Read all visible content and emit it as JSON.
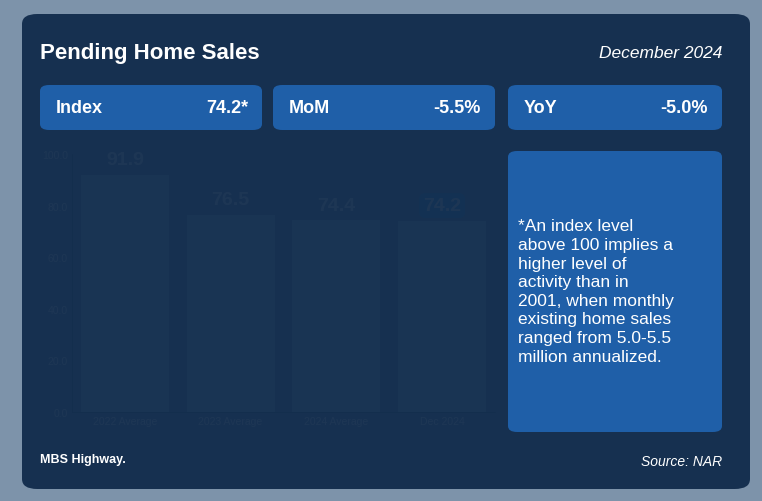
{
  "chart_data": {
    "type": "bar",
    "title": "Pending Home Sales",
    "subtitle": "December 2024",
    "stats": [
      {
        "label": "Index",
        "value": "74.2*"
      },
      {
        "label": "MoM",
        "value": "-5.5%"
      },
      {
        "label": "YoY",
        "value": "-5.0%"
      }
    ],
    "categories": [
      "2022 Average",
      "2023 Average",
      "2024 Average",
      "Dec 2024"
    ],
    "values": [
      91.9,
      76.5,
      74.4,
      74.2
    ],
    "color": "#a9d6ec",
    "data_labels": true,
    "ylim": [
      0,
      100
    ],
    "yticks": [
      {
        "value": 0,
        "label": "0.0"
      },
      {
        "value": 20,
        "label": "20.0"
      },
      {
        "value": 40,
        "label": "40.0"
      },
      {
        "value": 60,
        "label": "60.0"
      },
      {
        "value": 80,
        "label": "80.0"
      },
      {
        "value": 100,
        "label": "100.0"
      }
    ],
    "grid": false,
    "note": "*An index level above 100 implies a higher level of activity than in 2001, when monthly existing home sales ranged from 5.0-5.5 million annualized.",
    "logo": "MBS Highway.",
    "source": "Source: NAR"
  }
}
